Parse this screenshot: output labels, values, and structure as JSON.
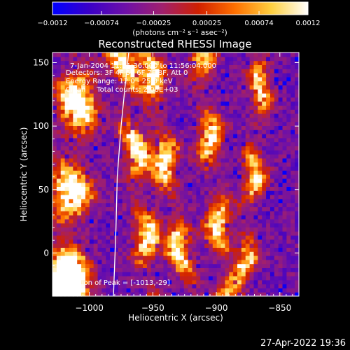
{
  "chart_data": {
    "type": "heatmap",
    "title": "Reconstructed RHESSI Image",
    "xlabel": "Heliocentric X (arcsec)",
    "ylabel": "Heliocentric Y (arcsec)",
    "xlim": [
      -1029,
      -835
    ],
    "ylim": [
      -34,
      158
    ],
    "x_ticks": [
      -1000,
      -950,
      -900,
      -850
    ],
    "y_ticks": [
      0,
      50,
      100,
      150
    ],
    "x_tick_labels": [
      "−1000",
      "−950",
      "−900",
      "−850"
    ],
    "y_tick_labels": [
      "0",
      "50",
      "100",
      "150"
    ],
    "colorbar": {
      "range": [
        -0.0012,
        0.0012
      ],
      "ticks": [
        -0.0012,
        -0.00074,
        -0.00025,
        0.00025,
        0.00074,
        0.0012
      ],
      "tick_labels": [
        "−0.0012",
        "−0.00074",
        "−0.00025",
        "0.00025",
        "0.00074",
        "0.0012"
      ],
      "unit_label": "(photons cm⁻² s⁻¹ asec⁻²)",
      "colormap": [
        "#0000ff",
        "#3a00c8",
        "#6e10a8",
        "#a0206e",
        "#d02000",
        "#ff7000",
        "#ffd040",
        "#ffffff"
      ]
    },
    "annotations": [
      "7-Jan-2004 11:51:36.000 to 11:56:04.000",
      "Detectors: 3F 4F 5F 6F 7F 8F, Att 0",
      "Energy Range: 12.0 - 25.0 keV",
      "Clean     Total counts: 2.08E+03"
    ],
    "peak_label": "Position of Peak = [-1013,-29]",
    "peak": {
      "x": -1013,
      "y": -29
    },
    "limb": [
      [
        -981,
        -34
      ],
      [
        -979,
        20
      ],
      [
        -978,
        60
      ],
      [
        -975,
        100
      ],
      [
        -972,
        130
      ],
      [
        -969,
        158
      ]
    ],
    "ridges": [
      {
        "x": -1015,
        "x_slope": 0.1,
        "width": 14,
        "peak": 1.0
      },
      {
        "x": -962,
        "x_slope": -0.12,
        "width": 9,
        "peak": 0.85
      },
      {
        "x": -938,
        "x_slope": -0.18,
        "width": 9,
        "peak": 0.8
      },
      {
        "x": -902,
        "x_slope": -0.12,
        "width": 9,
        "peak": 0.75
      },
      {
        "x": -872,
        "x_slope": 0.1,
        "width": 8,
        "peak": 0.7
      }
    ],
    "grid_cells": [
      60,
      60
    ],
    "grid": false
  },
  "footer": {
    "timestamp": "27-Apr-2022 19:36"
  }
}
